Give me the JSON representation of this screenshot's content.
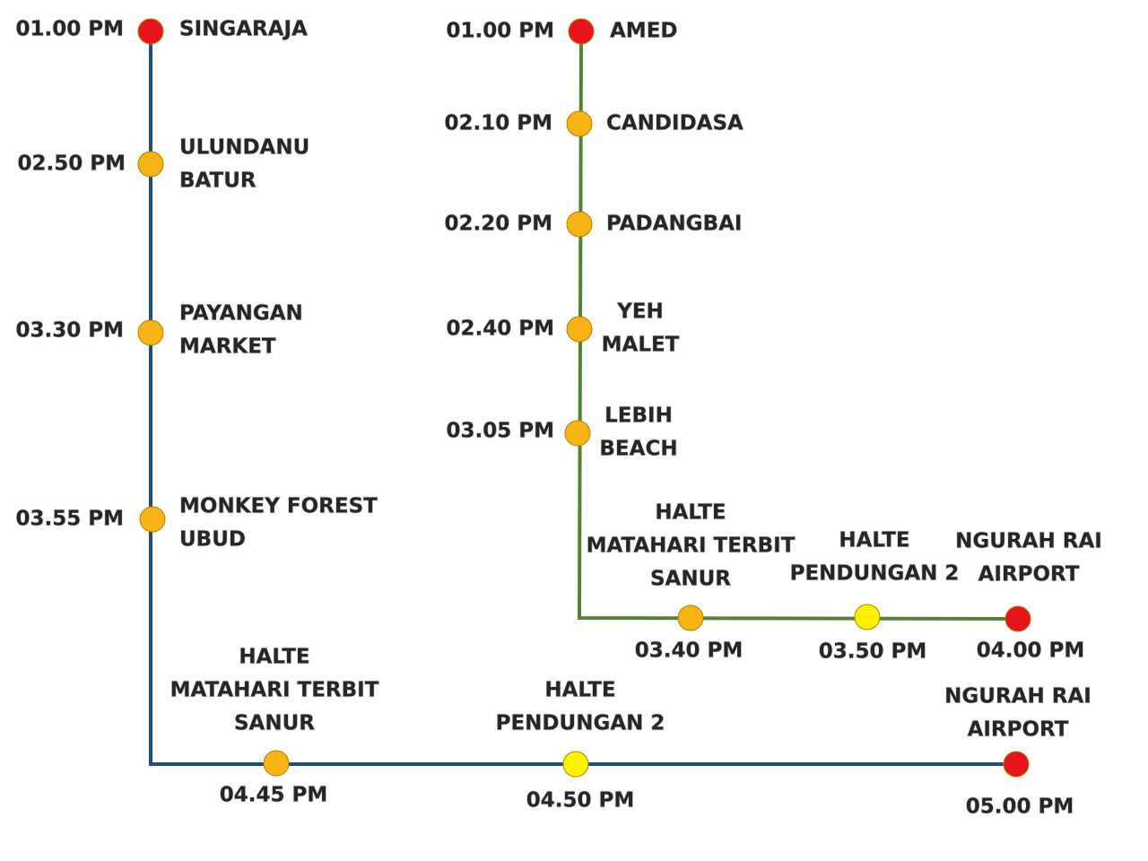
{
  "routes": [
    {
      "stops": [
        {
          "time": "01.00 PM",
          "name": [
            "SINGARAJA"
          ]
        },
        {
          "time": "02.50 PM",
          "name": [
            "ULUNDANU",
            "BATUR"
          ]
        },
        {
          "time": "03.30 PM",
          "name": [
            "PAYANGAN",
            "MARKET"
          ]
        },
        {
          "time": "03.55 PM",
          "name": [
            "MONKEY FOREST",
            "UBUD"
          ]
        },
        {
          "time": "04.45 PM",
          "name": [
            "HALTE",
            "MATAHARI TERBIT",
            "SANUR"
          ]
        },
        {
          "time": "04.50 PM",
          "name": [
            "HALTE",
            "PENDUNGAN 2"
          ]
        },
        {
          "time": "05.00 PM",
          "name": [
            "NGURAH RAI",
            "AIRPORT"
          ]
        }
      ]
    },
    {
      "stops": [
        {
          "time": "01.00 PM",
          "name": [
            "AMED"
          ]
        },
        {
          "time": "02.10 PM",
          "name": [
            "CANDIDASA"
          ]
        },
        {
          "time": "02.20 PM",
          "name": [
            "PADANGBAI"
          ]
        },
        {
          "time": "02.40 PM",
          "name": [
            "YEH",
            "MALET"
          ]
        },
        {
          "time": "03.05 PM",
          "name": [
            "LEBIH",
            "BEACH"
          ]
        },
        {
          "time": "03.40 PM",
          "name": [
            "HALTE",
            "MATAHARI TERBIT",
            "SANUR"
          ]
        },
        {
          "time": "03.50 PM",
          "name": [
            "HALTE",
            "PENDUNGAN 2"
          ]
        },
        {
          "time": "04.00 PM",
          "name": [
            "NGURAH RAI",
            "AIRPORT"
          ]
        }
      ]
    }
  ]
}
